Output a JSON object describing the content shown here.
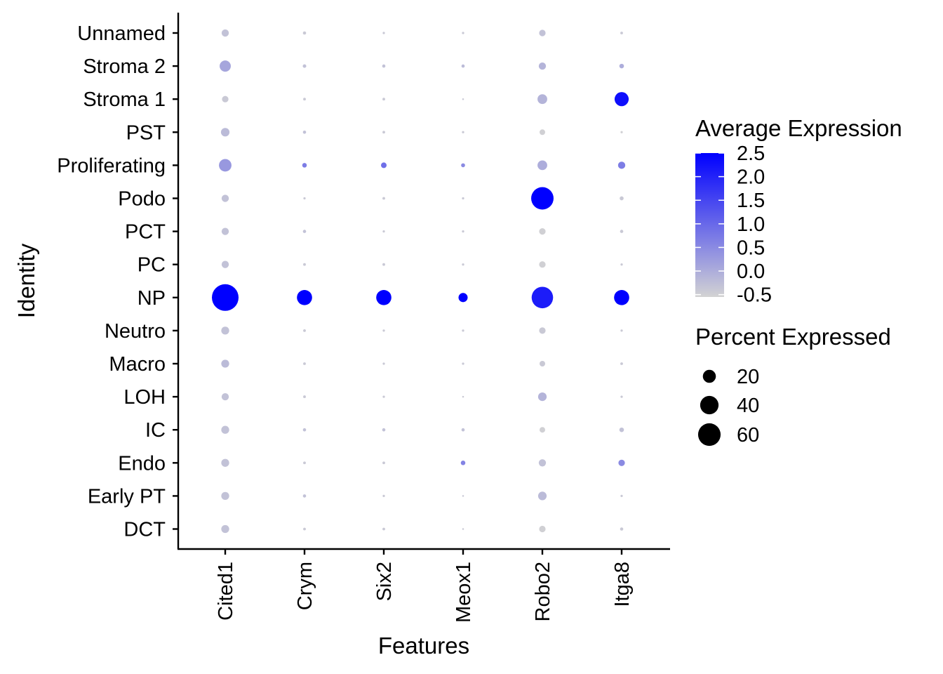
{
  "chart_data": {
    "type": "dotplot",
    "xlabel": "Features",
    "ylabel": "Identity",
    "features": [
      "Cited1",
      "Crym",
      "Six2",
      "Meox1",
      "Robo2",
      "Itga8"
    ],
    "identities": [
      "Unnamed",
      "Stroma 2",
      "Stroma 1",
      "PST",
      "Proliferating",
      "Podo",
      "PCT",
      "PC",
      "NP",
      "Neutro",
      "Macro",
      "LOH",
      "IC",
      "Endo",
      "Early PT",
      "DCT"
    ],
    "pct_expressed": [
      [
        5,
        1,
        0.5,
        0.5,
        4,
        0.7
      ],
      [
        12,
        1.2,
        1,
        1,
        5,
        2
      ],
      [
        4,
        0.7,
        0.7,
        0.3,
        9,
        19
      ],
      [
        7,
        1,
        0.7,
        0.5,
        3,
        0.5
      ],
      [
        15,
        2,
        3,
        1.5,
        9,
        5
      ],
      [
        5,
        0.5,
        0.7,
        0.5,
        48,
        1.5
      ],
      [
        5,
        1,
        0.5,
        0.5,
        4,
        1
      ],
      [
        5,
        0.7,
        0.7,
        0.5,
        4,
        0.5
      ],
      [
        68,
        22,
        22,
        8,
        44,
        22
      ],
      [
        6,
        0.7,
        0.5,
        0.5,
        4,
        0.5
      ],
      [
        6,
        0.7,
        0.5,
        0.5,
        3,
        0.7
      ],
      [
        5,
        0.7,
        0.5,
        0.3,
        7,
        0.5
      ],
      [
        6,
        1,
        1,
        1,
        3,
        2
      ],
      [
        6,
        0.7,
        0.7,
        2,
        5,
        4
      ],
      [
        6,
        1,
        0.5,
        0.3,
        7,
        0.5
      ],
      [
        6,
        0.7,
        0.7,
        0.3,
        4,
        1
      ]
    ],
    "avg_expression": [
      [
        -0.3,
        -0.4,
        -0.4,
        -0.4,
        -0.3,
        -0.4
      ],
      [
        0.1,
        -0.3,
        -0.3,
        -0.2,
        -0.1,
        0.0
      ],
      [
        -0.4,
        -0.4,
        -0.4,
        -0.4,
        -0.1,
        2.3
      ],
      [
        -0.2,
        -0.3,
        -0.4,
        -0.4,
        -0.5,
        -0.5
      ],
      [
        0.3,
        0.7,
        0.9,
        0.5,
        0.0,
        0.7
      ],
      [
        -0.3,
        -0.4,
        -0.4,
        -0.4,
        2.5,
        -0.4
      ],
      [
        -0.3,
        -0.3,
        -0.4,
        -0.4,
        -0.5,
        -0.4
      ],
      [
        -0.3,
        -0.4,
        -0.4,
        -0.4,
        -0.5,
        -0.4
      ],
      [
        2.5,
        2.5,
        2.5,
        2.5,
        2.1,
        2.5
      ],
      [
        -0.3,
        -0.4,
        -0.4,
        -0.4,
        -0.4,
        -0.4
      ],
      [
        -0.2,
        -0.4,
        -0.4,
        -0.4,
        -0.4,
        -0.4
      ],
      [
        -0.3,
        -0.4,
        -0.4,
        -0.4,
        -0.1,
        -0.4
      ],
      [
        -0.3,
        -0.3,
        -0.3,
        -0.3,
        -0.5,
        -0.3
      ],
      [
        -0.3,
        -0.4,
        -0.4,
        0.6,
        -0.3,
        0.5
      ],
      [
        -0.3,
        -0.3,
        -0.4,
        -0.4,
        -0.2,
        -0.4
      ],
      [
        -0.3,
        -0.4,
        -0.4,
        -0.4,
        -0.5,
        -0.4
      ]
    ],
    "color_scale": {
      "title": "Average Expression",
      "ticks": [
        "2.5",
        "2.0",
        "1.5",
        "1.0",
        "0.5",
        "0.0",
        "-0.5"
      ],
      "tick_values": [
        2.5,
        2.0,
        1.5,
        1.0,
        0.5,
        0.0,
        -0.5
      ],
      "range": [
        -0.55,
        2.5
      ],
      "low_color": "#d3d3d3",
      "high_color": "#0000ff"
    },
    "size_scale": {
      "title": "Percent Expressed",
      "labels": [
        "20",
        "40",
        "60"
      ],
      "values": [
        20,
        40,
        60
      ],
      "max_value": 68
    },
    "legend_position": "right",
    "grid": false
  }
}
